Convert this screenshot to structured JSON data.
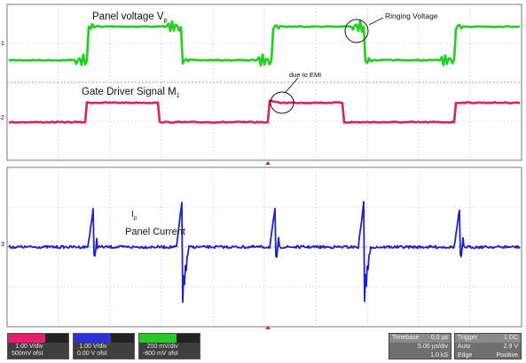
{
  "annotations": {
    "panel_voltage": "Panel voltage V",
    "panel_voltage_sub": "p",
    "ringing_voltage": "Ringing Voltage",
    "gate_driver": "Gate Driver Signal M",
    "gate_driver_sub": "1",
    "due_to_emi": "due to EMI",
    "current_symbol": "I",
    "current_sub": "p",
    "panel_current": "Panel Current"
  },
  "channel_markers": {
    "ch1": "1",
    "ch2": "2",
    "ch3": "3"
  },
  "trigger_marker": "T",
  "colors": {
    "green": "#1fd11f",
    "magenta": "#d6245f",
    "blue": "#1c22c8",
    "grid": "#9a9a9a",
    "frame": "#777777"
  },
  "status": {
    "ch_a": {
      "line1": "1.00 V/div",
      "line2": "500mV ofst"
    },
    "ch_b": {
      "line1": "1.00 V/div",
      "line2": "0.00 V ofst"
    },
    "ch_c": {
      "line1": "200 mV/div",
      "line2": "-800 mV ofst"
    },
    "timebase": {
      "title": "Timebase",
      "title_value": "0.0 µs",
      "row1_label": "",
      "row1_value": "5.00 µs/div",
      "row2_label": "",
      "row2_value": "1.0 kS"
    },
    "trigger": {
      "title": "Trigger",
      "title_value": "1 DC",
      "row1_label": "Auto",
      "row1_value": "2.9 V",
      "row2_label": "Edge",
      "row2_value": "Positive"
    }
  }
}
